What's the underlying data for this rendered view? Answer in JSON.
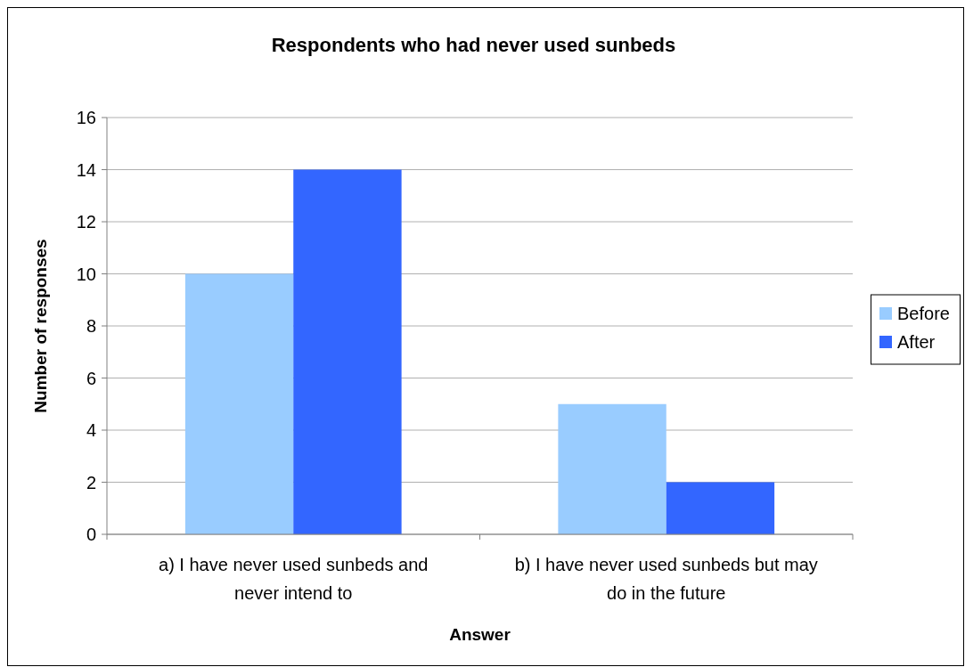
{
  "chart_data": {
    "type": "bar",
    "title": "Respondents who had never used sunbeds",
    "xlabel": "Answer",
    "ylabel": "Number of responses",
    "categories": [
      "a) I have never used sunbeds and never intend to",
      "b) I have never used sunbeds but may do in the future"
    ],
    "series": [
      {
        "name": "Before",
        "color": "#99ccff",
        "values": [
          10,
          5
        ]
      },
      {
        "name": "After",
        "color": "#3366ff",
        "values": [
          14,
          2
        ]
      }
    ],
    "ylim": [
      0,
      16
    ],
    "yticks": [
      0,
      2,
      4,
      6,
      8,
      10,
      12,
      14,
      16
    ],
    "grid": "y",
    "legend": "right"
  }
}
